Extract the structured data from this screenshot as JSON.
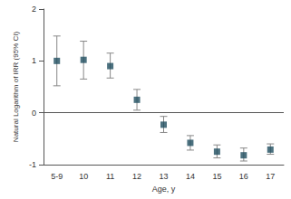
{
  "chart_data": {
    "type": "scatter",
    "x_label": "Age, y",
    "y_label": "Natural Logarithm of IRR (95% CI)",
    "categories": [
      "5-9",
      "10",
      "11",
      "12",
      "13",
      "14",
      "15",
      "16",
      "17"
    ],
    "values": [
      1.0,
      1.02,
      0.9,
      0.25,
      -0.23,
      -0.58,
      -0.75,
      -0.82,
      -0.71
    ],
    "lower": [
      0.52,
      0.65,
      0.67,
      0.05,
      -0.38,
      -0.72,
      -0.87,
      -0.93,
      -0.8
    ],
    "upper": [
      1.48,
      1.38,
      1.15,
      0.45,
      -0.07,
      -0.44,
      -0.62,
      -0.68,
      -0.6
    ],
    "color": "#1f4e5f",
    "marker": "square",
    "ylim": [
      -1,
      2
    ],
    "yticks": [
      -1,
      0,
      1,
      2
    ],
    "reference_line": 0,
    "grid": false
  }
}
